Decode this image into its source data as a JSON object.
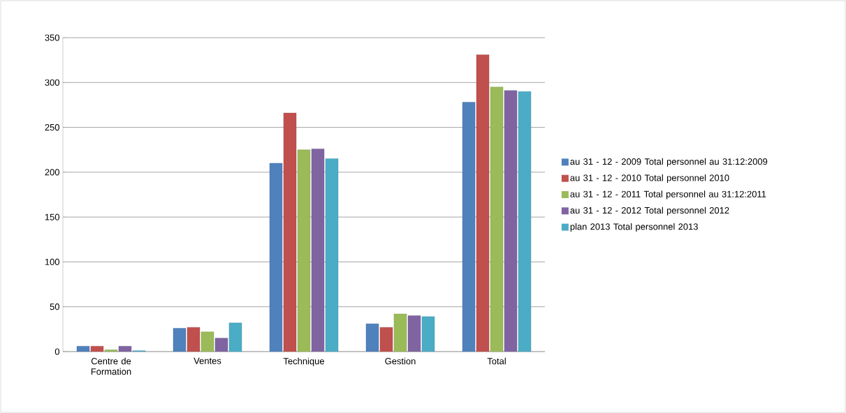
{
  "chart_data": {
    "type": "bar",
    "categories": [
      "Centre de Formation",
      "Ventes",
      "Technique",
      "Gestion",
      "Total"
    ],
    "series": [
      {
        "name": "au 31 - 12 - 2009 Total personnel au 31:12:2009",
        "color": "#4f81bd",
        "values": [
          6,
          26,
          210,
          31,
          278
        ]
      },
      {
        "name": "au 31 - 12 - 2010 Total personnel 2010",
        "color": "#c0504d",
        "values": [
          6,
          27,
          266,
          27,
          331
        ]
      },
      {
        "name": "au 31 - 12 - 2011 Total personnel au 31:12:2011",
        "color": "#9bbb59",
        "values": [
          2,
          22,
          225,
          42,
          295
        ]
      },
      {
        "name": "au 31 - 12 - 2012 Total personnel 2012",
        "color": "#8064a2",
        "values": [
          6,
          15,
          226,
          40,
          291
        ]
      },
      {
        "name": "plan 2013 Total personnel 2013",
        "color": "#4bacc6",
        "values": [
          1,
          32,
          215,
          39,
          290
        ]
      }
    ],
    "ylim": [
      0,
      350
    ],
    "yticks": [
      0,
      50,
      100,
      150,
      200,
      250,
      300,
      350
    ],
    "grid": "y",
    "legend": "right"
  }
}
